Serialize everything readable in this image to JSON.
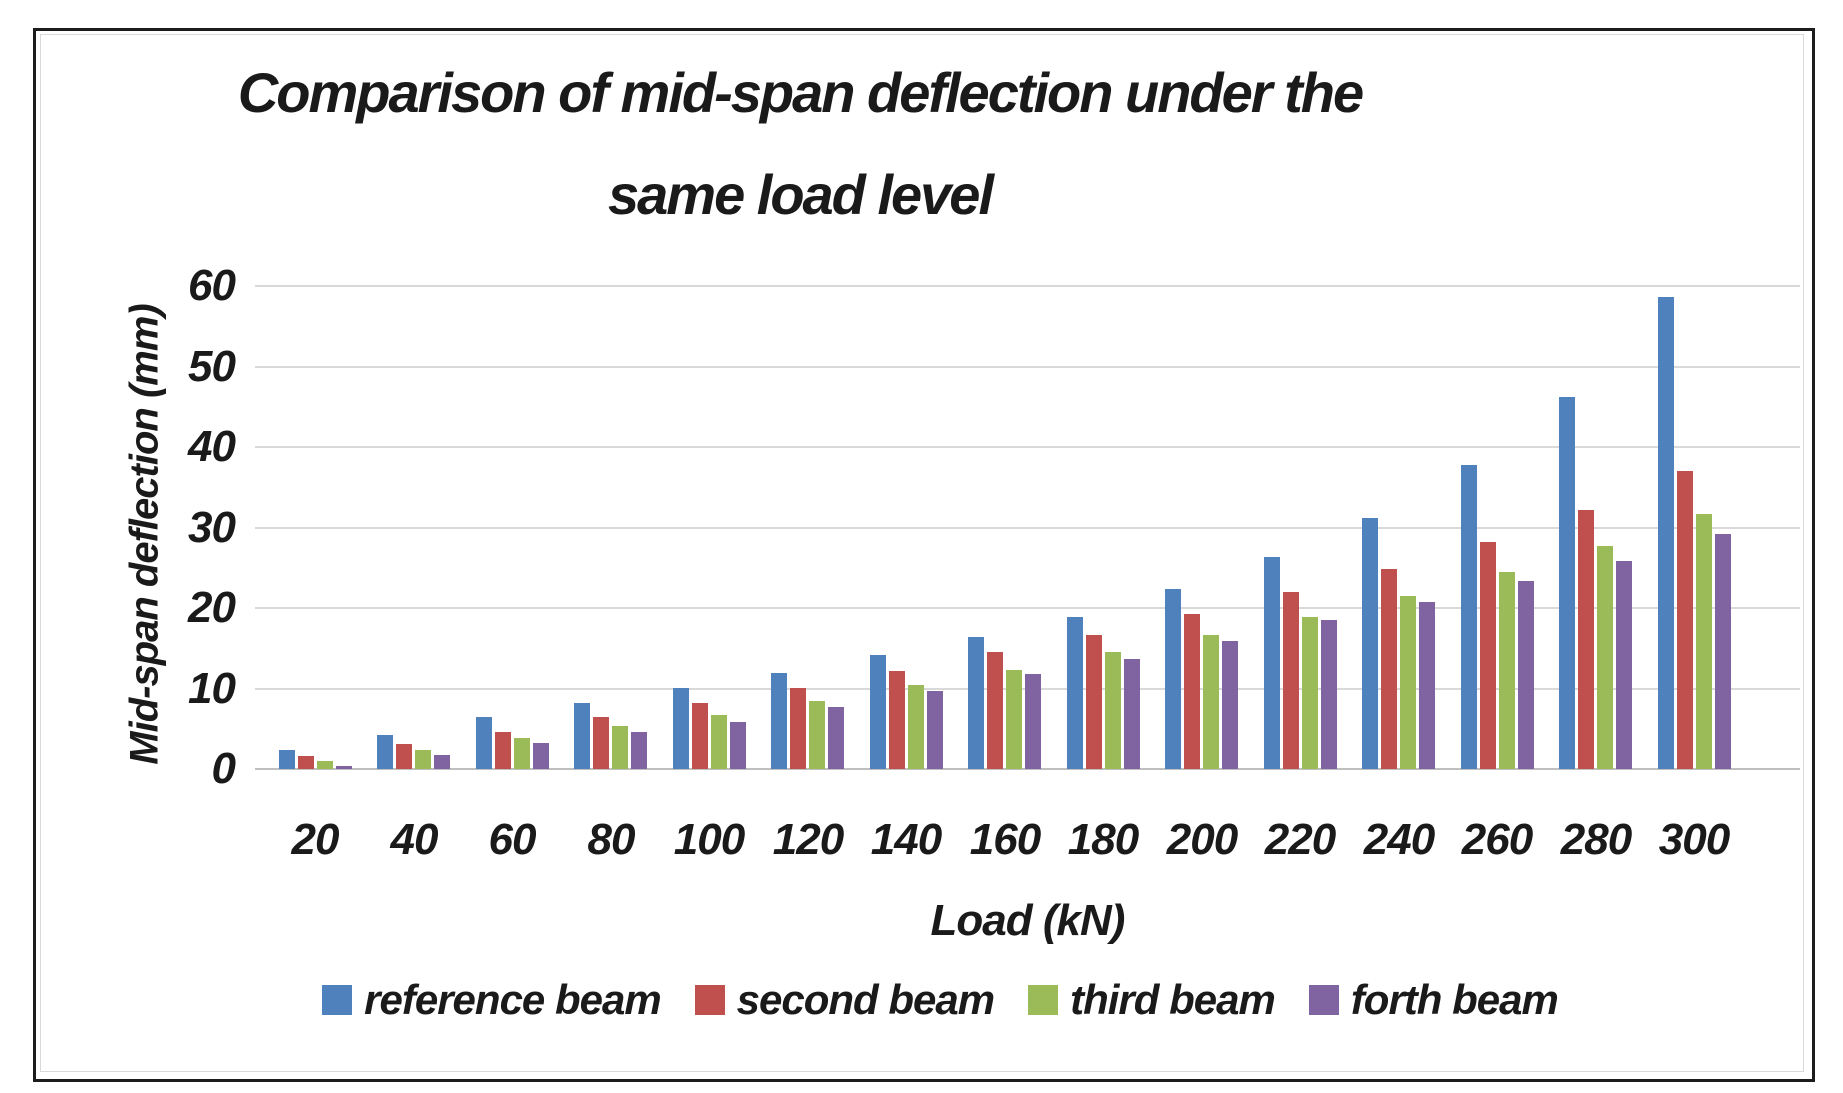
{
  "title": {
    "line1": "Comparison of mid-span deflection under the",
    "line2": "same load level"
  },
  "y_axis": {
    "label": "Mid-span deflection (mm)",
    "ticks": [
      0,
      10,
      20,
      30,
      40,
      50,
      60
    ]
  },
  "x_axis": {
    "label": "Load (kN)"
  },
  "colors": {
    "reference_beam": "#4f81bd",
    "second_beam": "#c0504d",
    "third_beam": "#9bbb59",
    "forth_beam": "#8064a2",
    "gridline": "#d9d9d9",
    "axis_line": "#bfbfbf",
    "text": "#1a1a1a"
  },
  "chart_data": {
    "type": "bar",
    "title": "Comparison of mid-span deflection under the same load level",
    "xlabel": "Load (kN)",
    "ylabel": "Mid-span deflection (mm)",
    "ylim": [
      0,
      60
    ],
    "yticks": [
      0,
      10,
      20,
      30,
      40,
      50,
      60
    ],
    "grid": true,
    "legend_position": "bottom",
    "categories": [
      20,
      40,
      60,
      80,
      100,
      120,
      140,
      160,
      180,
      200,
      220,
      240,
      260,
      280,
      300
    ],
    "series": [
      {
        "name": "reference beam",
        "color": "#4f81bd",
        "values": [
          2.3,
          4.2,
          6.4,
          8.2,
          10.0,
          11.9,
          14.2,
          16.4,
          18.9,
          22.3,
          26.3,
          31.2,
          37.8,
          46.2,
          58.6
        ]
      },
      {
        "name": "second beam",
        "color": "#c0504d",
        "values": [
          1.6,
          3.1,
          4.6,
          6.4,
          8.2,
          10.0,
          12.2,
          14.5,
          16.7,
          19.3,
          22.0,
          24.9,
          28.2,
          32.2,
          37.0
        ]
      },
      {
        "name": "third beam",
        "color": "#9bbb59",
        "values": [
          1.0,
          2.4,
          3.8,
          5.4,
          6.7,
          8.5,
          10.4,
          12.3,
          14.5,
          16.7,
          18.9,
          21.5,
          24.5,
          27.7,
          31.7
        ]
      },
      {
        "name": "forth beam",
        "color": "#8064a2",
        "values": [
          0.4,
          1.7,
          3.2,
          4.6,
          5.9,
          7.7,
          9.7,
          11.8,
          13.7,
          15.9,
          18.5,
          20.8,
          23.3,
          25.9,
          29.2
        ]
      }
    ]
  }
}
